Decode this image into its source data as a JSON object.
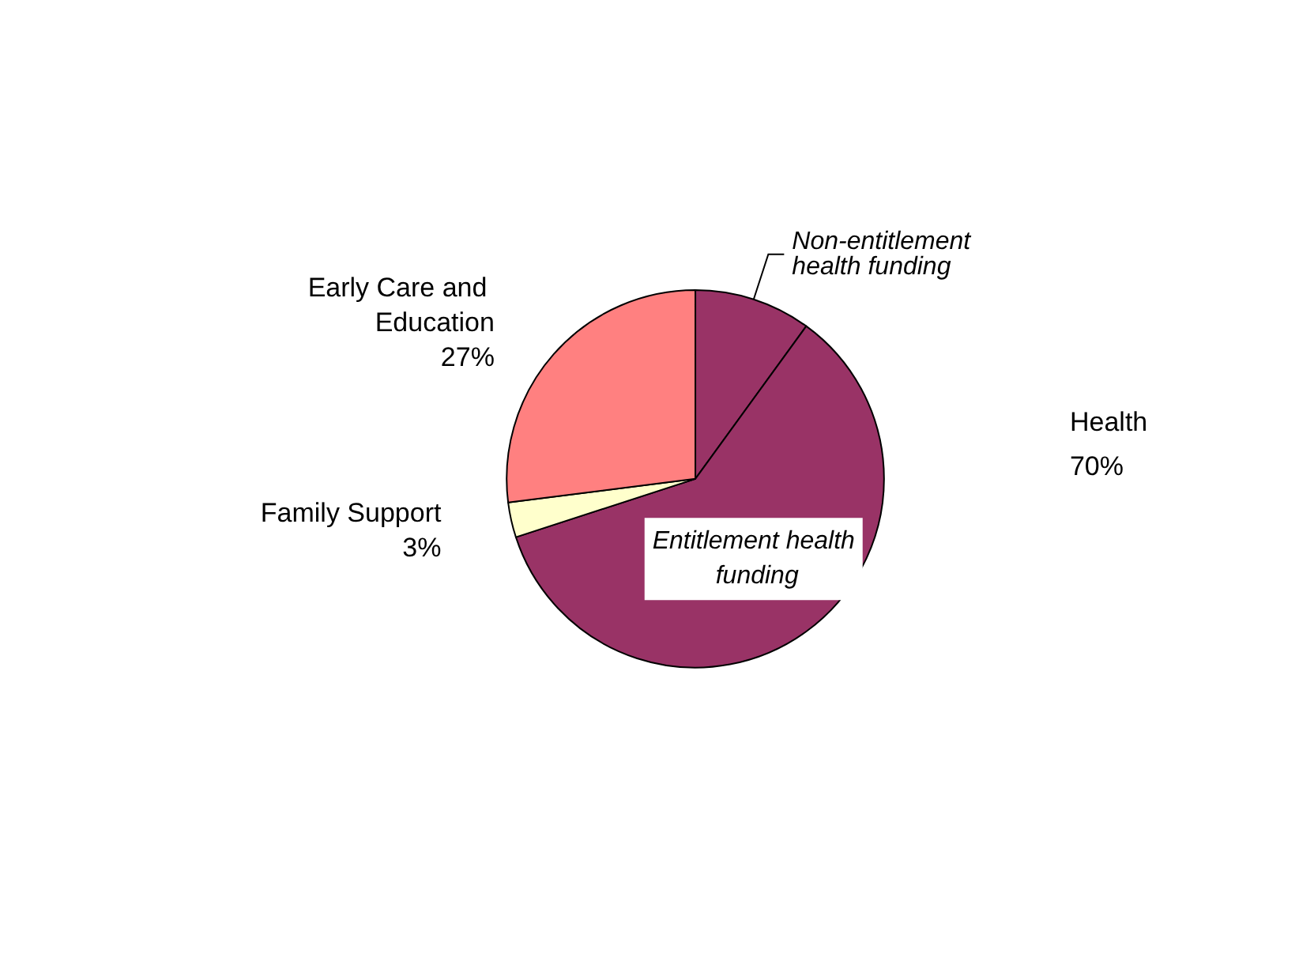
{
  "chart_data": {
    "type": "pie",
    "categories": [
      "Non-entitlement health funding",
      "Entitlement health funding",
      "Family Support",
      "Early Care and Education"
    ],
    "values": [
      10,
      60,
      3,
      27
    ],
    "colors": [
      "#993366",
      "#993366",
      "#ffffcc",
      "#ff8080"
    ],
    "value_labels": [
      null,
      null,
      "3%",
      "27%"
    ],
    "annotations": [
      "Health\n70%"
    ],
    "legend": false
  }
}
